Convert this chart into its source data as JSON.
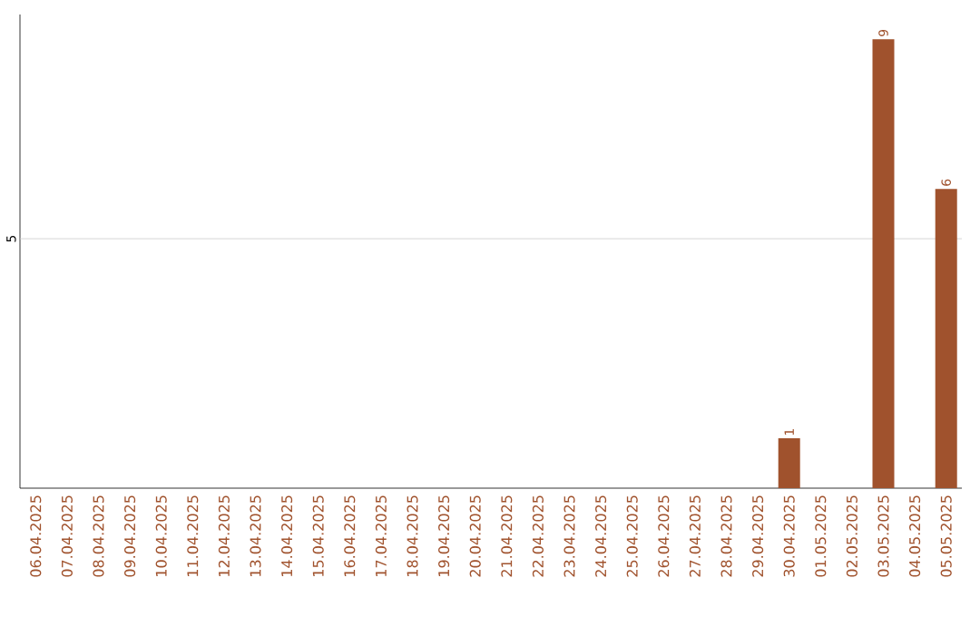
{
  "chart_data": {
    "type": "bar",
    "categories": [
      "06.04.2025",
      "07.04.2025",
      "08.04.2025",
      "09.04.2025",
      "10.04.2025",
      "11.04.2025",
      "12.04.2025",
      "13.04.2025",
      "14.04.2025",
      "15.04.2025",
      "16.04.2025",
      "17.04.2025",
      "18.04.2025",
      "19.04.2025",
      "20.04.2025",
      "21.04.2025",
      "22.04.2025",
      "23.04.2025",
      "24.04.2025",
      "25.04.2025",
      "26.04.2025",
      "27.04.2025",
      "28.04.2025",
      "29.04.2025",
      "30.04.2025",
      "01.05.2025",
      "02.05.2025",
      "03.05.2025",
      "04.05.2025",
      "05.05.2025"
    ],
    "values": [
      null,
      null,
      null,
      null,
      null,
      null,
      null,
      null,
      null,
      null,
      null,
      null,
      null,
      null,
      null,
      null,
      null,
      null,
      null,
      null,
      null,
      null,
      null,
      null,
      1,
      null,
      null,
      9,
      null,
      6
    ],
    "value_labels": [
      null,
      null,
      null,
      null,
      null,
      null,
      null,
      null,
      null,
      null,
      null,
      null,
      null,
      null,
      null,
      null,
      null,
      null,
      null,
      null,
      null,
      null,
      null,
      null,
      "1",
      null,
      null,
      "9",
      null,
      "6"
    ],
    "color": "#a0522d",
    "ref_lines": [
      {
        "axis": "y",
        "value": 5,
        "label": "5",
        "color": "#cccccc"
      }
    ]
  }
}
